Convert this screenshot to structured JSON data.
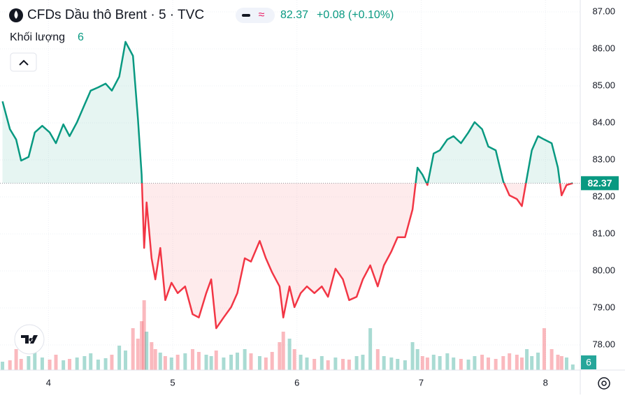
{
  "chart_data": {
    "type": "baseline",
    "title": "CFDs Dầu thô Brent · 5 · TVC",
    "price": "82.37",
    "change": "+0.08 (+0.10%)",
    "baseline": 82.37,
    "up_color": "#089981",
    "down_color": "#f23645",
    "x": [
      3.63,
      3.69,
      3.74,
      3.78,
      3.84,
      3.89,
      3.95,
      4.01,
      4.06,
      4.12,
      4.17,
      4.23,
      4.29,
      4.34,
      4.4,
      4.46,
      4.51,
      4.57,
      4.62,
      4.68,
      4.72,
      4.75,
      4.77,
      4.79,
      4.83,
      4.86,
      4.9,
      4.94,
      4.99,
      5.04,
      5.1,
      5.16,
      5.21,
      5.27,
      5.31,
      5.35,
      5.41,
      5.47,
      5.52,
      5.58,
      5.63,
      5.7,
      5.75,
      5.8,
      5.86,
      5.89,
      5.94,
      5.98,
      6.03,
      6.08,
      6.14,
      6.2,
      6.25,
      6.31,
      6.37,
      6.42,
      6.48,
      6.53,
      6.59,
      6.65,
      6.7,
      6.76,
      6.81,
      6.87,
      6.93,
      6.97,
      7.01,
      7.05,
      7.1,
      7.15,
      7.21,
      7.26,
      7.32,
      7.38,
      7.43,
      7.49,
      7.54,
      7.6,
      7.66,
      7.71,
      7.77,
      7.81,
      7.85,
      7.89,
      7.94,
      7.99,
      8.05,
      8.1,
      8.13,
      8.17,
      8.22
    ],
    "values": [
      84.58,
      83.83,
      83.55,
      82.98,
      83.08,
      83.74,
      83.92,
      83.74,
      83.45,
      83.96,
      83.64,
      84.02,
      84.49,
      84.87,
      84.96,
      85.06,
      84.87,
      85.25,
      86.19,
      85.81,
      84.11,
      82.6,
      80.62,
      81.85,
      80.34,
      79.77,
      80.62,
      79.21,
      79.68,
      79.4,
      79.58,
      78.83,
      78.74,
      79.4,
      79.77,
      78.45,
      78.74,
      79.02,
      79.4,
      80.34,
      80.25,
      80.81,
      80.34,
      79.96,
      79.58,
      78.74,
      79.58,
      79.02,
      79.4,
      79.58,
      79.4,
      79.58,
      79.3,
      80.06,
      79.77,
      79.21,
      79.3,
      79.77,
      80.15,
      79.58,
      80.15,
      80.53,
      80.91,
      80.91,
      81.66,
      82.79,
      82.6,
      82.32,
      83.17,
      83.26,
      83.55,
      83.64,
      83.45,
      83.74,
      84.02,
      83.83,
      83.36,
      83.26,
      82.42,
      82.04,
      81.94,
      81.75,
      82.51,
      83.26,
      83.64,
      83.55,
      83.45,
      82.79,
      82.04,
      82.32,
      82.37
    ],
    "xlim": [
      3.61,
      8.28
    ],
    "xticks": [
      4,
      5,
      6,
      7,
      8
    ],
    "ylim": [
      77.32,
      87.32
    ],
    "yticks": [
      {
        "value": 78,
        "label": "78.00"
      },
      {
        "value": 79,
        "label": "79.00"
      },
      {
        "value": 80,
        "label": "80.00"
      },
      {
        "value": 81,
        "label": "81.00"
      },
      {
        "value": 82,
        "label": "82.00"
      },
      {
        "value": 83,
        "label": "83.00"
      },
      {
        "value": 84,
        "label": "84.00"
      },
      {
        "value": 85,
        "label": "85.00"
      },
      {
        "value": 86,
        "label": "86.00"
      },
      {
        "value": 87,
        "label": "87.00"
      }
    ],
    "grid": true,
    "volume": {
      "name": "Khối lượng",
      "value_label": "6",
      "ylim": [
        0,
        150
      ],
      "values": [
        12,
        14,
        30,
        16,
        20,
        25,
        18,
        15,
        22,
        14,
        16,
        18,
        20,
        24,
        15,
        17,
        22,
        35,
        28,
        60,
        45,
        70,
        100,
        55,
        40,
        30,
        25,
        20,
        18,
        22,
        24,
        30,
        26,
        22,
        20,
        28,
        18,
        22,
        25,
        30,
        24,
        20,
        18,
        26,
        40,
        55,
        45,
        30,
        22,
        18,
        16,
        20,
        14,
        18,
        16,
        15,
        20,
        22,
        60,
        30,
        20,
        18,
        16,
        14,
        40,
        30,
        20,
        18,
        22,
        20,
        24,
        18,
        16,
        15,
        20,
        22,
        18,
        16,
        20,
        24,
        22,
        18,
        30,
        20,
        25,
        60,
        30,
        22,
        20,
        18,
        8
      ]
    }
  }
}
